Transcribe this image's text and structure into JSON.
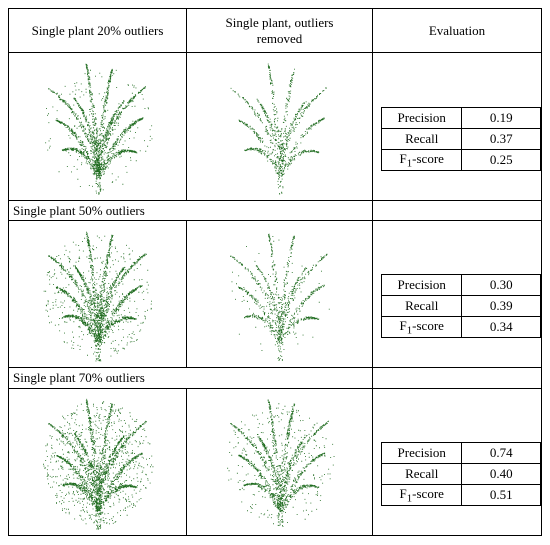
{
  "table": {
    "headers": {
      "col1": "Single plant 20% outliers",
      "col2_line1": "Single plant, outliers",
      "col2_line2": "removed",
      "col3": "Evaluation"
    },
    "row_labels": {
      "r2": "Single plant 50% outliers",
      "r3": "Single plant 70% outliers"
    },
    "metric_names": {
      "precision": "Precision",
      "recall": "Recall",
      "f1_prefix": "F",
      "f1_sub": "1",
      "f1_suffix": "-score"
    },
    "rows": [
      {
        "precision": "0.19",
        "recall": "0.37",
        "f1": "0.25"
      },
      {
        "precision": "0.30",
        "recall": "0.39",
        "f1": "0.34"
      },
      {
        "precision": "0.74",
        "recall": "0.40",
        "f1": "0.51"
      }
    ],
    "colors": {
      "plant": "#1e6b1e",
      "border": "#000000"
    }
  }
}
